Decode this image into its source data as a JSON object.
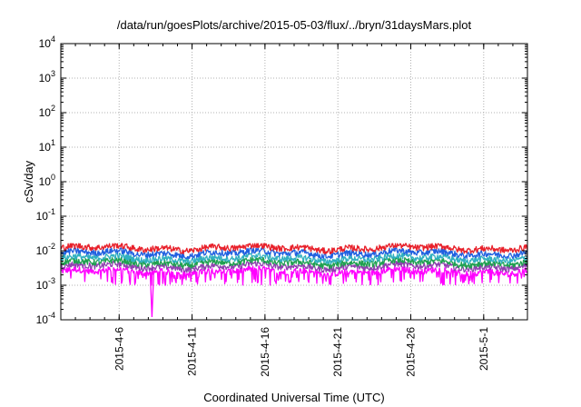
{
  "chart_data": {
    "type": "line",
    "title": "/data/run/goesPlots/archive/2015-05-03/flux/../bryn/31daysMars.plot",
    "xlabel": "Coordinated Universal Time (UTC)",
    "ylabel": "cSv/day",
    "yscale": "log",
    "ylim": [
      "1e-4",
      "1e4"
    ],
    "xlim": [
      "2015-04-02",
      "2015-05-04"
    ],
    "grid": true,
    "y_ticks": [
      {
        "base": "10",
        "exp": "4"
      },
      {
        "base": "10",
        "exp": "3"
      },
      {
        "base": "10",
        "exp": "2"
      },
      {
        "base": "10",
        "exp": "1"
      },
      {
        "base": "10",
        "exp": "0"
      },
      {
        "base": "10",
        "exp": "-1"
      },
      {
        "base": "10",
        "exp": "-2"
      },
      {
        "base": "10",
        "exp": "-3"
      },
      {
        "base": "10",
        "exp": "-4"
      }
    ],
    "x_ticks": [
      "2015-4-6",
      "2015-4-11",
      "2015-4-16",
      "2015-4-21",
      "2015-4-26",
      "2015-5-1"
    ],
    "series": [
      {
        "color": "#e8202a",
        "typical": 0.012,
        "min": 0.008,
        "max": 0.016
      },
      {
        "color": "#2060e0",
        "typical": 0.0085,
        "min": 0.006,
        "max": 0.012
      },
      {
        "color": "#30b0c0",
        "typical": 0.006,
        "min": 0.004,
        "max": 0.009
      },
      {
        "color": "#20a050",
        "typical": 0.0045,
        "min": 0.003,
        "max": 0.007
      },
      {
        "color": "#9040b0",
        "typical": 0.0035,
        "min": 0.002,
        "max": 0.005
      },
      {
        "color": "#ff00ff",
        "typical": 0.0025,
        "min": 0.00012,
        "max": 0.004
      }
    ]
  }
}
